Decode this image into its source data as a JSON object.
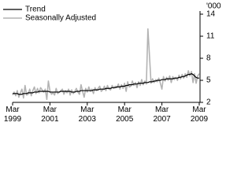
{
  "chart_data": {
    "type": "line",
    "y_label": "'000",
    "categories": [
      "Mar 1999",
      null,
      null,
      null,
      null,
      null,
      null,
      null,
      null,
      null,
      null,
      null,
      null,
      null,
      null,
      null,
      null,
      null,
      null,
      null,
      null,
      null,
      null,
      null,
      "Mar 2001",
      null,
      null,
      null,
      null,
      null,
      null,
      null,
      null,
      null,
      null,
      null,
      null,
      null,
      null,
      null,
      null,
      null,
      null,
      null,
      null,
      null,
      null,
      null,
      "Mar 2003",
      null,
      null,
      null,
      null,
      null,
      null,
      null,
      null,
      null,
      null,
      null,
      null,
      null,
      null,
      null,
      null,
      null,
      null,
      null,
      null,
      null,
      null,
      null,
      "Mar 2005",
      null,
      null,
      null,
      null,
      null,
      null,
      null,
      null,
      null,
      null,
      null,
      null,
      null,
      null,
      null,
      null,
      null,
      null,
      null,
      null,
      null,
      null,
      null,
      "Mar 2007",
      null,
      null,
      null,
      null,
      null,
      null,
      null,
      null,
      null,
      null,
      null,
      null,
      null,
      null,
      null,
      null,
      null,
      null,
      null,
      null,
      null,
      null,
      null,
      "Mar 2009"
    ],
    "series": [
      {
        "name": "Trend",
        "color": "#000000",
        "values": [
          3.2,
          3.2,
          3.2,
          3.2,
          3.1,
          3.1,
          3.1,
          3.2,
          3.2,
          3.2,
          3.3,
          3.3,
          3.3,
          3.3,
          3.4,
          3.4,
          3.4,
          3.5,
          3.5,
          3.5,
          3.5,
          3.5,
          3.5,
          3.5,
          3.4,
          3.4,
          3.4,
          3.4,
          3.4,
          3.4,
          3.4,
          3.5,
          3.5,
          3.5,
          3.5,
          3.5,
          3.5,
          3.5,
          3.4,
          3.4,
          3.4,
          3.5,
          3.5,
          3.5,
          3.6,
          3.6,
          3.6,
          3.6,
          3.6,
          3.6,
          3.6,
          3.6,
          3.7,
          3.7,
          3.7,
          3.7,
          3.8,
          3.8,
          3.8,
          3.8,
          3.9,
          3.9,
          3.9,
          3.9,
          4.0,
          4.0,
          4.0,
          4.1,
          4.1,
          4.1,
          4.2,
          4.2,
          4.2,
          4.3,
          4.3,
          4.4,
          4.4,
          4.4,
          4.5,
          4.5,
          4.5,
          4.6,
          4.6,
          4.6,
          4.6,
          4.7,
          4.7,
          4.7,
          4.8,
          4.8,
          4.8,
          4.9,
          4.9,
          5.0,
          5.0,
          5.0,
          5.1,
          5.1,
          5.1,
          5.2,
          5.2,
          5.2,
          5.2,
          5.2,
          5.3,
          5.3,
          5.3,
          5.4,
          5.4,
          5.5,
          5.5,
          5.6,
          5.7,
          5.8,
          5.8,
          5.9,
          5.8,
          5.6,
          5.4,
          5.3,
          5.3
        ]
      },
      {
        "name": "Seasonally Adjusted",
        "color": "#b3b3b3",
        "values": [
          3.0,
          3.4,
          2.9,
          3.6,
          2.7,
          3.3,
          3.8,
          2.6,
          4.3,
          3.0,
          3.1,
          3.8,
          2.9,
          3.6,
          4.1,
          3.2,
          3.9,
          3.3,
          4.0,
          3.7,
          3.4,
          3.8,
          2.4,
          4.9,
          3.6,
          3.1,
          3.3,
          3.0,
          3.9,
          3.2,
          3.4,
          3.6,
          3.8,
          3.1,
          3.6,
          3.3,
          3.8,
          3.0,
          3.7,
          3.2,
          3.5,
          3.9,
          3.4,
          3.1,
          4.4,
          3.5,
          2.7,
          3.9,
          3.4,
          4.1,
          3.5,
          3.8,
          3.2,
          4.0,
          3.6,
          3.9,
          4.2,
          3.5,
          3.7,
          4.2,
          3.6,
          4.3,
          3.8,
          3.7,
          4.3,
          3.9,
          4.2,
          4.0,
          4.5,
          3.8,
          4.4,
          3.9,
          4.6,
          3.5,
          4.8,
          4.1,
          4.2,
          4.9,
          4.3,
          4.7,
          4.0,
          4.8,
          4.3,
          5.1,
          4.4,
          4.9,
          4.5,
          12.0,
          8.4,
          4.6,
          5.2,
          4.7,
          5.1,
          4.8,
          5.3,
          4.6,
          3.8,
          5.5,
          4.9,
          5.4,
          5.0,
          5.6,
          4.7,
          5.5,
          5.1,
          5.4,
          5.0,
          5.7,
          5.2,
          5.8,
          5.3,
          5.9,
          5.4,
          6.3,
          5.6,
          6.2,
          4.7,
          5.9,
          4.6,
          5.6,
          5.9
        ]
      }
    ],
    "ylim": [
      2,
      14
    ],
    "yticks": [
      2,
      5,
      8,
      11,
      14
    ],
    "grid": false,
    "legend": "top-left"
  }
}
